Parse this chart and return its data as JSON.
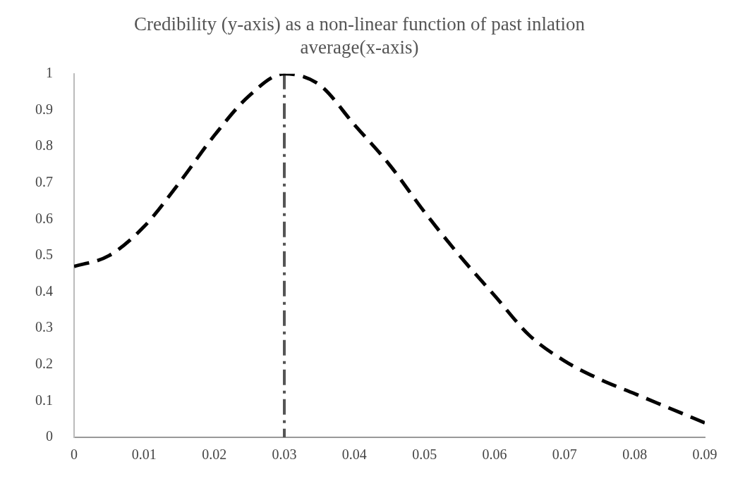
{
  "chart_data": {
    "type": "line",
    "title": "Credibility (y-axis) as a non-linear function of past inlation average(x-axis)",
    "x": [
      0,
      0.005,
      0.01,
      0.015,
      0.02,
      0.025,
      0.03,
      0.035,
      0.04,
      0.045,
      0.05,
      0.055,
      0.06,
      0.065,
      0.07,
      0.075,
      0.08,
      0.085,
      0.09
    ],
    "series": [
      {
        "color": "#000000",
        "values": [
          0.47,
          0.5,
          0.58,
          0.7,
          0.83,
          0.94,
          1.0,
          0.97,
          0.86,
          0.75,
          0.62,
          0.5,
          0.39,
          0.28,
          0.21,
          0.16,
          0.12,
          0.08,
          0.04
        ]
      }
    ],
    "xlim": [
      0,
      0.09
    ],
    "xticks": [
      0,
      0.01,
      0.02,
      0.03,
      0.04,
      0.05,
      0.06,
      0.07,
      0.08,
      0.09
    ],
    "ylim": [
      0,
      1
    ],
    "yticks": [
      0,
      0.1,
      0.2,
      0.3,
      0.4,
      0.5,
      0.6,
      0.7,
      0.8,
      0.9,
      1
    ],
    "ref_lines": [
      {
        "axis": "x",
        "value": 0.03,
        "color": "#555555",
        "line_style": "dashdot"
      }
    ],
    "grid": false,
    "legend": false,
    "marker": "none",
    "line_style": "dashed"
  }
}
